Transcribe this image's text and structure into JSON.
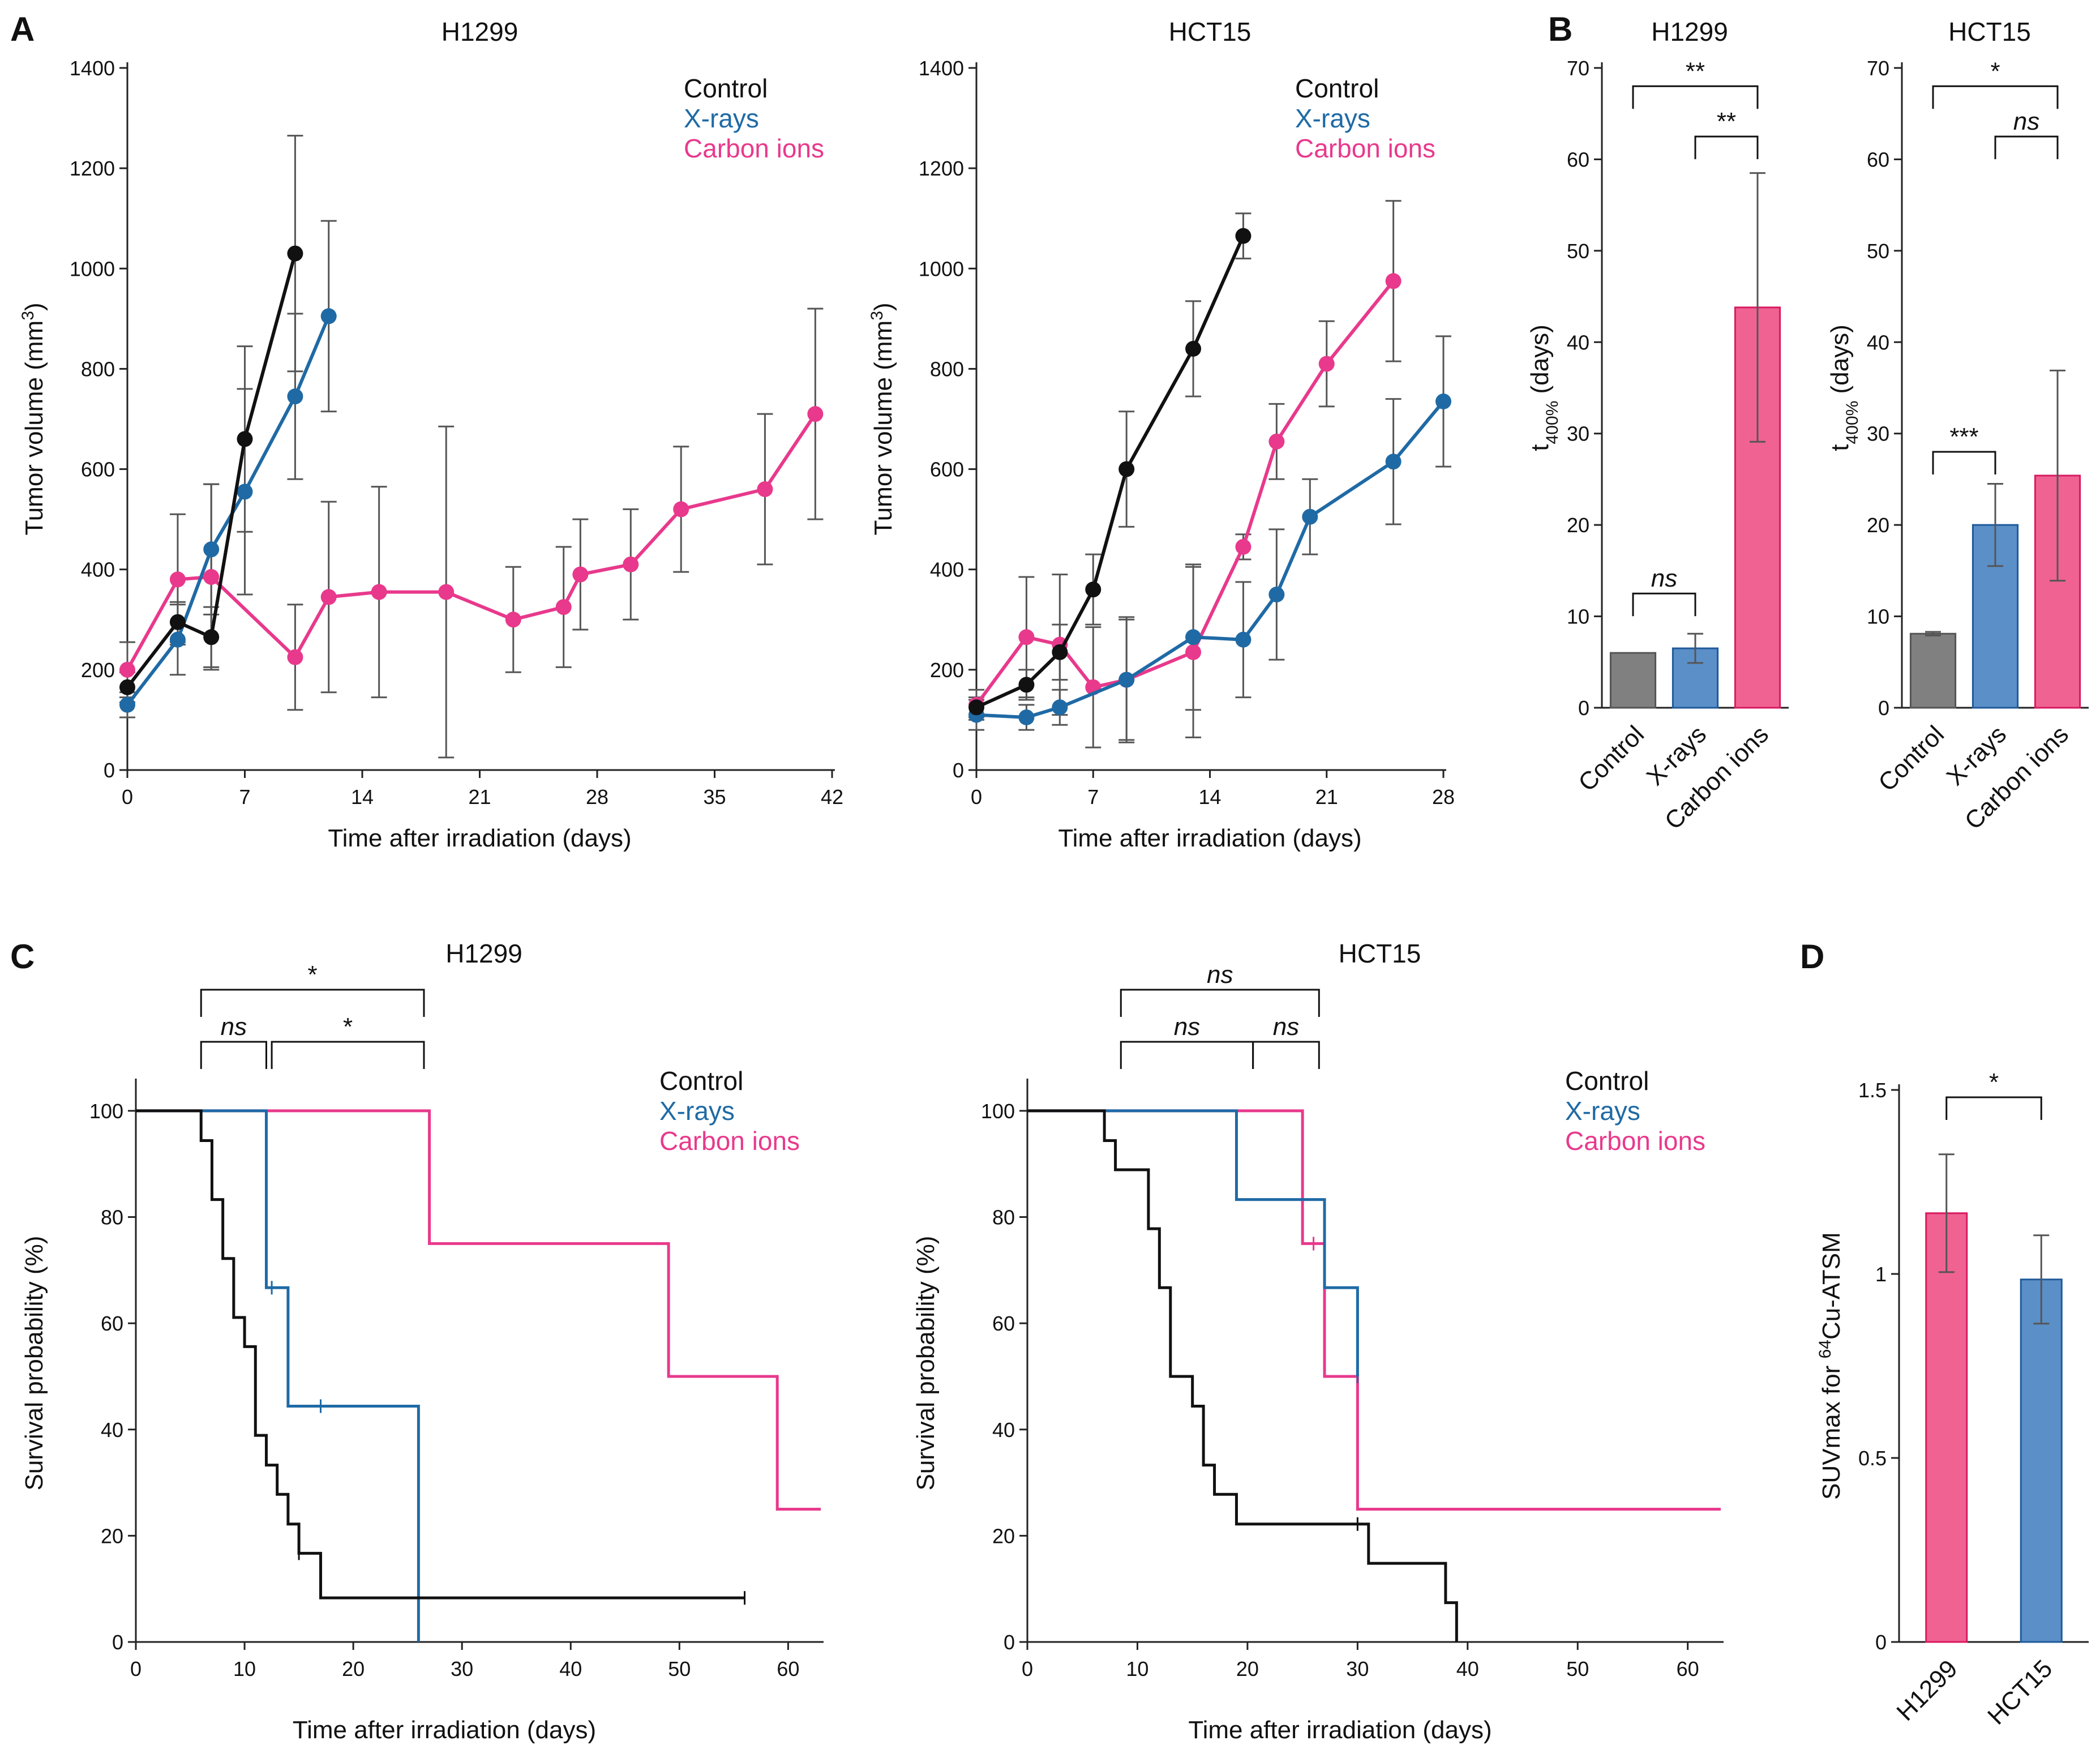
{
  "colors": {
    "control": "#111111",
    "xrays": "#1f6aa5",
    "carbon": "#e8398c",
    "xrays_bar": "#5b8fc7",
    "carbon_bar": "#f06292",
    "control_bar": "#808080",
    "error": "#555555"
  },
  "panels": {
    "A": {
      "letter": "A"
    },
    "B": {
      "letter": "B"
    },
    "C": {
      "letter": "C"
    },
    "D": {
      "letter": "D"
    }
  },
  "legend": {
    "control": "Control",
    "xrays": "X-rays",
    "carbon": "Carbon ions"
  },
  "chart_data": [
    {
      "id": "A1",
      "type": "line",
      "title": "H1299",
      "xlabel": "Time after irradiation (days)",
      "ylabel": "Tumor volume (mm³)",
      "xlim": [
        0,
        42
      ],
      "ylim": [
        0,
        1400
      ],
      "xticks": [
        0,
        7,
        14,
        21,
        28,
        35,
        42
      ],
      "yticks": [
        0,
        200,
        400,
        600,
        800,
        1000,
        1200,
        1400
      ],
      "series": [
        {
          "name": "Control",
          "color": "control",
          "x": [
            0,
            3,
            5,
            7,
            10
          ],
          "y": [
            165,
            295,
            265,
            660,
            1030
          ],
          "err": [
            30,
            40,
            60,
            185,
            235
          ]
        },
        {
          "name": "X-rays",
          "color": "xrays",
          "x": [
            0,
            3,
            5,
            7,
            10,
            12
          ],
          "y": [
            130,
            260,
            440,
            555,
            745,
            905
          ],
          "err": [
            25,
            70,
            130,
            205,
            165,
            190
          ]
        },
        {
          "name": "Carbon ions",
          "color": "carbon",
          "x": [
            0,
            3,
            5,
            10,
            12,
            15,
            19,
            23,
            26,
            27,
            30,
            33,
            38,
            41
          ],
          "y": [
            200,
            380,
            385,
            225,
            345,
            355,
            355,
            300,
            325,
            390,
            410,
            520,
            560,
            710
          ],
          "err": [
            55,
            130,
            185,
            105,
            190,
            210,
            330,
            105,
            120,
            110,
            110,
            125,
            150,
            210
          ]
        }
      ]
    },
    {
      "id": "A2",
      "type": "line",
      "title": "HCT15",
      "xlabel": "Time after irradiation (days)",
      "ylabel": "Tumor volume (mm³)",
      "xlim": [
        0,
        28
      ],
      "ylim": [
        0,
        1400
      ],
      "xticks": [
        0,
        7,
        14,
        21,
        28
      ],
      "yticks": [
        0,
        200,
        400,
        600,
        800,
        1000,
        1200,
        1400
      ],
      "series": [
        {
          "name": "Control",
          "color": "control",
          "x": [
            0,
            3,
            5,
            7,
            9,
            13,
            16
          ],
          "y": [
            125,
            170,
            235,
            360,
            600,
            840,
            1065
          ],
          "err": [
            20,
            30,
            55,
            70,
            115,
            95,
            45
          ]
        },
        {
          "name": "X-rays",
          "color": "xrays",
          "x": [
            0,
            3,
            5,
            9,
            13,
            16,
            18,
            20,
            25,
            28
          ],
          "y": [
            110,
            105,
            125,
            180,
            265,
            260,
            350,
            505,
            615,
            735
          ],
          "err": [
            30,
            25,
            35,
            125,
            145,
            115,
            130,
            75,
            125,
            130
          ]
        },
        {
          "name": "Carbon ions",
          "color": "carbon",
          "x": [
            0,
            3,
            5,
            7,
            9,
            13,
            16,
            18,
            21,
            25
          ],
          "y": [
            130,
            265,
            250,
            165,
            180,
            235,
            445,
            655,
            810,
            975
          ],
          "err": [
            30,
            120,
            140,
            120,
            120,
            170,
            25,
            75,
            85,
            160
          ]
        }
      ]
    },
    {
      "id": "B1",
      "type": "bar",
      "title": "H1299",
      "ylabel": "t400% (days)",
      "ylabel_main": "t",
      "ylabel_sub": "400%",
      "ylabel_rest": " (days)",
      "ylim": [
        0,
        70
      ],
      "yticks": [
        0,
        10,
        20,
        30,
        40,
        50,
        60,
        70
      ],
      "categories": [
        "Control",
        "X-rays",
        "Carbon ions"
      ],
      "values": [
        6,
        6.5,
        43.8
      ],
      "err": [
        0,
        1.6,
        14.7
      ],
      "bar_colors": [
        "control_bar",
        "xrays_bar",
        "carbon_bar"
      ],
      "brackets": [
        {
          "from": 0,
          "to": 1,
          "level": 12.5,
          "label": "ns",
          "italic": true
        },
        {
          "from": 1,
          "to": 2,
          "level": 62.5,
          "label": "**",
          "italic": false
        },
        {
          "from": 0,
          "to": 2,
          "level": 68,
          "label": "**",
          "italic": false
        }
      ]
    },
    {
      "id": "B2",
      "type": "bar",
      "title": "HCT15",
      "ylabel": "t400% (days)",
      "ylabel_main": "t",
      "ylabel_sub": "400%",
      "ylabel_rest": " (days)",
      "ylim": [
        0,
        70
      ],
      "yticks": [
        0,
        10,
        20,
        30,
        40,
        50,
        60,
        70
      ],
      "categories": [
        "Control",
        "X-rays",
        "Carbon ions"
      ],
      "values": [
        8.1,
        20,
        25.4
      ],
      "err": [
        0.2,
        4.5,
        11.5
      ],
      "bar_colors": [
        "control_bar",
        "xrays_bar",
        "carbon_bar"
      ],
      "brackets": [
        {
          "from": 0,
          "to": 1,
          "level": 28,
          "label": "***",
          "italic": false
        },
        {
          "from": 1,
          "to": 2,
          "level": 62.5,
          "label": "ns",
          "italic": true
        },
        {
          "from": 0,
          "to": 2,
          "level": 68,
          "label": "*",
          "italic": false
        }
      ]
    },
    {
      "id": "C1",
      "type": "step",
      "title": "H1299",
      "xlabel": "Time after irradiation (days)",
      "ylabel": "Survival probability (%)",
      "xlim": [
        0,
        63
      ],
      "ylim": [
        0,
        105
      ],
      "xticks": [
        0,
        10,
        20,
        30,
        40,
        50,
        60
      ],
      "yticks": [
        0,
        20,
        40,
        60,
        80,
        100
      ],
      "series": [
        {
          "name": "Control",
          "color": "control",
          "steps": [
            [
              0,
              100
            ],
            [
              6,
              94.4
            ],
            [
              7,
              83.3
            ],
            [
              8,
              72.2
            ],
            [
              9,
              61.1
            ],
            [
              10,
              55.6
            ],
            [
              11,
              38.9
            ],
            [
              12,
              33.3
            ],
            [
              13,
              27.8
            ],
            [
              14,
              22.2
            ],
            [
              15,
              16.7
            ],
            [
              17,
              8.3
            ],
            [
              56,
              8.3
            ]
          ],
          "censor": [
            [
              15,
              16.7
            ],
            [
              56,
              8.3
            ]
          ]
        },
        {
          "name": "X-rays",
          "color": "xrays",
          "steps": [
            [
              0,
              100
            ],
            [
              12,
              66.7
            ],
            [
              14,
              44.4
            ],
            [
              26,
              0
            ]
          ],
          "censor": [
            [
              12.5,
              66.7
            ],
            [
              17,
              44.4
            ]
          ]
        },
        {
          "name": "Carbon ions",
          "color": "carbon",
          "steps": [
            [
              0,
              100
            ],
            [
              27,
              75
            ],
            [
              49,
              50
            ],
            [
              59,
              25
            ],
            [
              63,
              25
            ]
          ],
          "censor": []
        }
      ],
      "brackets": [
        {
          "from": 6,
          "to": 12,
          "tier": 1,
          "label": "ns",
          "italic": true
        },
        {
          "from": 12.5,
          "to": 26.5,
          "tier": 1,
          "label": "*",
          "italic": false
        },
        {
          "from": 6,
          "to": 26.5,
          "tier": 2,
          "label": "*",
          "italic": false
        }
      ]
    },
    {
      "id": "C2",
      "type": "step",
      "title": "HCT15",
      "xlabel": "Time after irradiation (days)",
      "ylabel": "Survival probability (%)",
      "xlim": [
        0,
        63
      ],
      "ylim": [
        0,
        105
      ],
      "xticks": [
        0,
        10,
        20,
        30,
        40,
        50,
        60
      ],
      "yticks": [
        0,
        20,
        40,
        60,
        80,
        100
      ],
      "series": [
        {
          "name": "Control",
          "color": "control",
          "steps": [
            [
              0,
              100
            ],
            [
              7,
              94.4
            ],
            [
              8,
              88.9
            ],
            [
              11,
              77.8
            ],
            [
              12,
              66.7
            ],
            [
              13,
              50
            ],
            [
              15,
              44.4
            ],
            [
              16,
              33.3
            ],
            [
              17,
              27.8
            ],
            [
              19,
              22.2
            ],
            [
              31,
              14.8
            ],
            [
              38,
              7.4
            ],
            [
              39,
              0
            ]
          ],
          "censor": [
            [
              30,
              22.2
            ]
          ]
        },
        {
          "name": "X-rays",
          "color": "xrays",
          "steps": [
            [
              0,
              100
            ],
            [
              19,
              83.3
            ],
            [
              27,
              66.7
            ],
            [
              30,
              50
            ]
          ],
          "censor": [
            [
              30,
              50
            ]
          ]
        },
        {
          "name": "Carbon ions",
          "color": "carbon",
          "steps": [
            [
              0,
              100
            ],
            [
              25,
              75
            ],
            [
              27,
              50
            ],
            [
              30,
              25
            ],
            [
              63,
              25
            ]
          ],
          "censor": [
            [
              26,
              75
            ]
          ]
        }
      ],
      "brackets": [
        {
          "from": 8.5,
          "to": 20.5,
          "tier": 1,
          "label": "ns",
          "italic": true
        },
        {
          "from": 20.5,
          "to": 26.5,
          "tier": 1,
          "label": "ns",
          "italic": true
        },
        {
          "from": 8.5,
          "to": 26.5,
          "tier": 2,
          "label": "ns",
          "italic": true
        }
      ]
    },
    {
      "id": "D",
      "type": "bar",
      "title": "",
      "ylabel": "SUVmax for 64Cu-ATSM",
      "ylabel_main": "SUVmax for ",
      "ylabel_sup": "64",
      "ylabel_rest": "Cu-ATSM",
      "ylim": [
        0,
        1.5
      ],
      "yticks": [
        0,
        0.5,
        1,
        1.5
      ],
      "ytick_labels": [
        "0",
        "0.5",
        "1",
        "1.5"
      ],
      "categories": [
        "H1299",
        "HCT15"
      ],
      "values": [
        1.165,
        0.985
      ],
      "err": [
        0.16,
        0.12
      ],
      "bar_colors": [
        "carbon_bar",
        "xrays_bar"
      ],
      "brackets": [
        {
          "from": 0,
          "to": 1,
          "level": 1.48,
          "label": "*",
          "italic": false
        }
      ]
    }
  ]
}
